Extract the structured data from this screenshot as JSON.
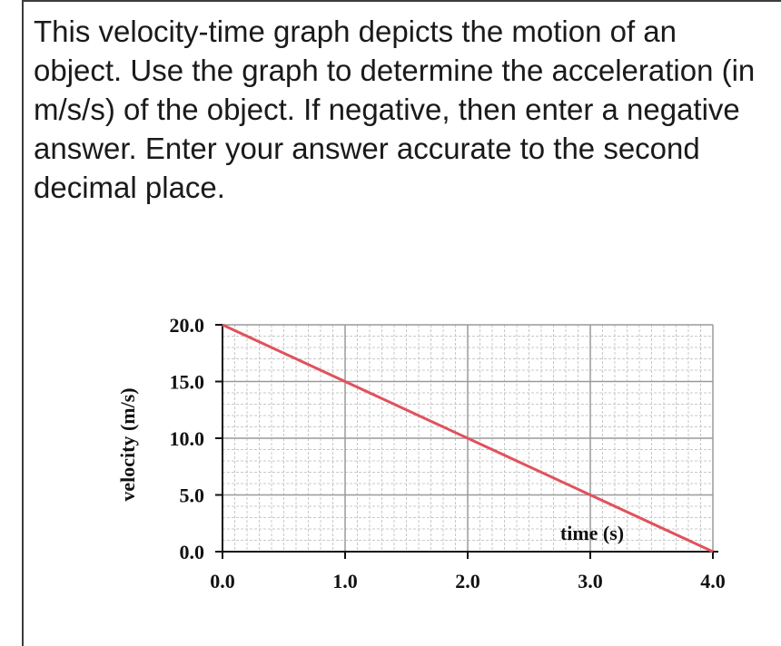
{
  "question": {
    "lines": [
      "This velocity-time graph depicts the motion of an",
      "object. Use the graph to determine the acceleration (in",
      "m/s/s) of the object. If negative, then enter a negative",
      "answer. Enter your answer accurate to the second",
      "decimal place."
    ]
  },
  "chart_data": {
    "type": "line",
    "title": "",
    "xlabel": "time (s)",
    "ylabel": "velocity (m/s)",
    "xlim": [
      0,
      4
    ],
    "ylim": [
      0,
      20
    ],
    "x_ticks": [
      "0.0",
      "1.0",
      "2.0",
      "3.0",
      "4.0"
    ],
    "y_ticks": [
      "0.0",
      "5.0",
      "10.0",
      "15.0",
      "20.0"
    ],
    "grid": true,
    "series": [
      {
        "color": "#e0525c",
        "x": [
          0,
          1,
          2,
          3,
          4
        ],
        "y": [
          20,
          15,
          10,
          5,
          0
        ]
      }
    ]
  }
}
